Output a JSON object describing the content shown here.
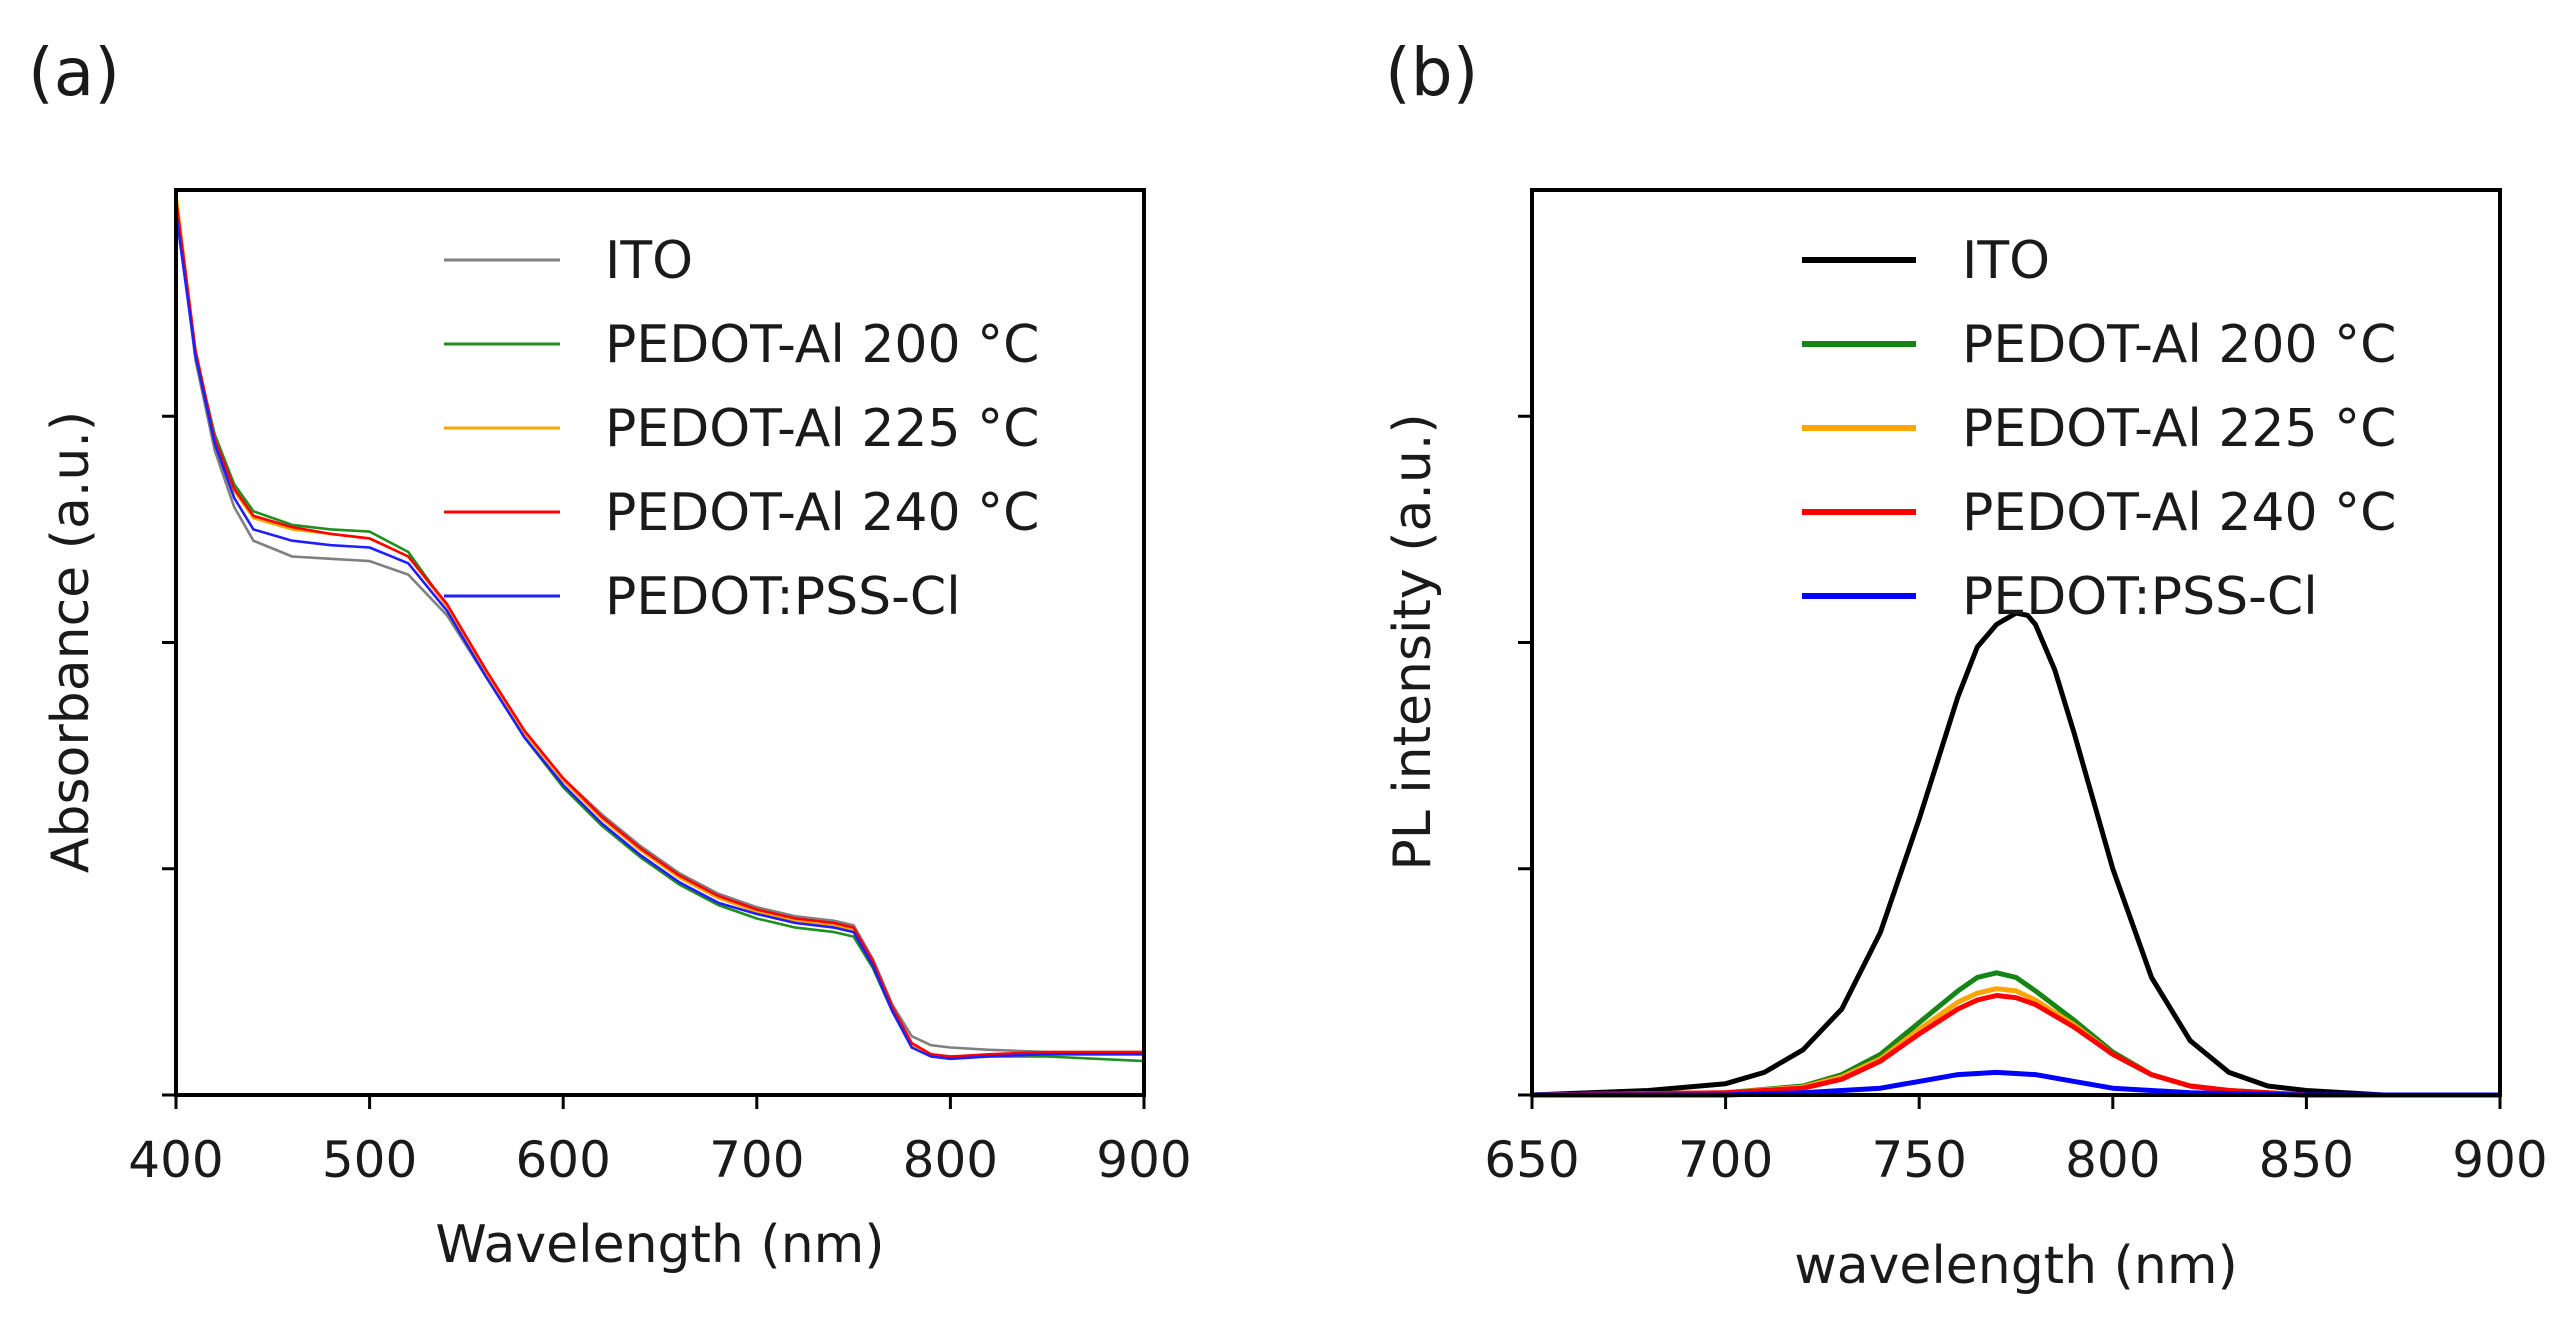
{
  "chart_data": [
    {
      "type": "line",
      "panel_label": "(a)",
      "xlabel": "Wavelength (nm)",
      "ylabel": "Absorbance (a.u.)",
      "xlim": [
        400,
        900
      ],
      "ylim": [
        0,
        4
      ],
      "xticks": [
        400,
        500,
        600,
        700,
        800,
        900
      ],
      "yticks": [
        0,
        1,
        2,
        3
      ],
      "show_ytick_labels": false,
      "legend_position": "upper-right",
      "series": [
        {
          "name": "ITO",
          "color": "#808080",
          "x": [
            400,
            410,
            420,
            430,
            440,
            460,
            480,
            500,
            520,
            540,
            560,
            580,
            600,
            620,
            640,
            660,
            680,
            700,
            720,
            740,
            750,
            760,
            770,
            780,
            790,
            800,
            820,
            850,
            900
          ],
          "y": [
            3.95,
            3.25,
            2.85,
            2.6,
            2.45,
            2.38,
            2.37,
            2.36,
            2.3,
            2.12,
            1.85,
            1.6,
            1.4,
            1.24,
            1.1,
            0.98,
            0.89,
            0.83,
            0.79,
            0.77,
            0.75,
            0.6,
            0.4,
            0.26,
            0.22,
            0.21,
            0.2,
            0.19,
            0.19
          ]
        },
        {
          "name": "PEDOT-Al 200  °C",
          "color": "#1f8f1f",
          "x": [
            400,
            410,
            420,
            430,
            440,
            460,
            480,
            500,
            520,
            540,
            560,
            580,
            600,
            620,
            640,
            660,
            680,
            700,
            720,
            740,
            750,
            760,
            770,
            780,
            790,
            800,
            820,
            850,
            900
          ],
          "y": [
            3.97,
            3.28,
            2.92,
            2.7,
            2.58,
            2.52,
            2.5,
            2.49,
            2.4,
            2.16,
            1.86,
            1.58,
            1.36,
            1.19,
            1.05,
            0.93,
            0.84,
            0.78,
            0.74,
            0.72,
            0.7,
            0.56,
            0.37,
            0.22,
            0.18,
            0.17,
            0.17,
            0.17,
            0.15
          ]
        },
        {
          "name": "PEDOT-Al 225  °C",
          "color": "#ffa500",
          "x": [
            400,
            410,
            420,
            430,
            440,
            460,
            480,
            500,
            520,
            540,
            560,
            580,
            600,
            620,
            640,
            660,
            680,
            700,
            720,
            740,
            750,
            760,
            770,
            780,
            790,
            800,
            820,
            850,
            900
          ],
          "y": [
            3.99,
            3.3,
            2.9,
            2.67,
            2.55,
            2.5,
            2.48,
            2.46,
            2.38,
            2.16,
            1.87,
            1.6,
            1.39,
            1.22,
            1.08,
            0.96,
            0.87,
            0.81,
            0.77,
            0.75,
            0.73,
            0.58,
            0.38,
            0.22,
            0.17,
            0.16,
            0.17,
            0.18,
            0.18
          ]
        },
        {
          "name": "PEDOT-Al 240  °C",
          "color": "#ff0000",
          "x": [
            400,
            410,
            420,
            430,
            440,
            460,
            480,
            500,
            520,
            540,
            560,
            580,
            600,
            620,
            640,
            660,
            680,
            700,
            720,
            740,
            750,
            760,
            770,
            780,
            790,
            800,
            820,
            850,
            900
          ],
          "y": [
            3.96,
            3.29,
            2.9,
            2.68,
            2.56,
            2.51,
            2.48,
            2.46,
            2.38,
            2.17,
            1.88,
            1.61,
            1.4,
            1.23,
            1.09,
            0.97,
            0.88,
            0.82,
            0.78,
            0.76,
            0.74,
            0.59,
            0.39,
            0.23,
            0.18,
            0.17,
            0.18,
            0.19,
            0.19
          ]
        },
        {
          "name": "PEDOT:PSS-Cl",
          "color": "#1f1fff",
          "x": [
            400,
            410,
            420,
            430,
            440,
            460,
            480,
            500,
            520,
            540,
            560,
            580,
            600,
            620,
            640,
            660,
            680,
            700,
            720,
            740,
            750,
            760,
            770,
            780,
            790,
            800,
            820,
            850,
            900
          ],
          "y": [
            3.9,
            3.27,
            2.88,
            2.64,
            2.5,
            2.45,
            2.43,
            2.42,
            2.35,
            2.14,
            1.85,
            1.58,
            1.37,
            1.2,
            1.06,
            0.94,
            0.85,
            0.8,
            0.76,
            0.74,
            0.72,
            0.57,
            0.37,
            0.21,
            0.17,
            0.16,
            0.17,
            0.18,
            0.18
          ]
        }
      ]
    },
    {
      "type": "line",
      "panel_label": "(b)",
      "xlabel": "wavelength (nm)",
      "ylabel": "PL intensity (a.u.)",
      "xlim": [
        650,
        900
      ],
      "ylim": [
        0,
        4
      ],
      "xticks": [
        650,
        700,
        750,
        800,
        850,
        900
      ],
      "yticks": [
        0,
        1,
        2,
        3
      ],
      "show_ytick_labels": false,
      "legend_position": "upper-right",
      "series": [
        {
          "name": "ITO",
          "color": "#000000",
          "x": [
            650,
            680,
            700,
            710,
            720,
            730,
            740,
            750,
            760,
            765,
            770,
            775,
            778,
            780,
            785,
            790,
            800,
            810,
            820,
            830,
            840,
            850,
            870,
            900
          ],
          "y": [
            0.0,
            0.02,
            0.05,
            0.1,
            0.2,
            0.38,
            0.72,
            1.22,
            1.76,
            1.98,
            2.08,
            2.13,
            2.12,
            2.08,
            1.88,
            1.6,
            1.0,
            0.52,
            0.24,
            0.1,
            0.04,
            0.02,
            0.0,
            0.0
          ]
        },
        {
          "name": "PEDOT-Al 200  °C",
          "color": "#158515",
          "x": [
            650,
            700,
            720,
            730,
            740,
            750,
            760,
            765,
            770,
            775,
            780,
            790,
            800,
            810,
            820,
            830,
            850,
            900
          ],
          "y": [
            0.0,
            0.01,
            0.04,
            0.09,
            0.18,
            0.32,
            0.46,
            0.52,
            0.54,
            0.52,
            0.46,
            0.33,
            0.19,
            0.09,
            0.04,
            0.02,
            0.0,
            0.0
          ]
        },
        {
          "name": "PEDOT-Al 225  °C",
          "color": "#ffa500",
          "x": [
            650,
            700,
            720,
            730,
            740,
            750,
            760,
            765,
            770,
            775,
            780,
            790,
            800,
            810,
            820,
            830,
            850,
            900
          ],
          "y": [
            0.0,
            0.01,
            0.035,
            0.08,
            0.16,
            0.29,
            0.41,
            0.45,
            0.47,
            0.46,
            0.42,
            0.31,
            0.18,
            0.09,
            0.04,
            0.02,
            0.0,
            0.0
          ]
        },
        {
          "name": "PEDOT-Al 240  °C",
          "color": "#ff0000",
          "x": [
            650,
            700,
            720,
            730,
            740,
            750,
            760,
            765,
            770,
            775,
            780,
            790,
            800,
            810,
            820,
            830,
            850,
            900
          ],
          "y": [
            0.0,
            0.01,
            0.03,
            0.07,
            0.15,
            0.27,
            0.38,
            0.42,
            0.44,
            0.43,
            0.4,
            0.3,
            0.18,
            0.09,
            0.04,
            0.02,
            0.0,
            0.0
          ]
        },
        {
          "name": "PEDOT:PSS-Cl",
          "color": "#0000ff",
          "x": [
            650,
            700,
            720,
            740,
            750,
            760,
            770,
            780,
            790,
            800,
            820,
            850,
            900
          ],
          "y": [
            0.0,
            0.0,
            0.01,
            0.03,
            0.06,
            0.09,
            0.1,
            0.09,
            0.06,
            0.03,
            0.01,
            0.0,
            0.0
          ]
        }
      ]
    }
  ]
}
